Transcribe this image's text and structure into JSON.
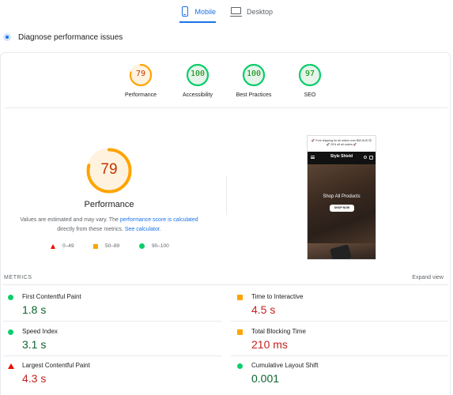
{
  "tabs": [
    {
      "label": "Mobile",
      "icon": "smartphone-icon",
      "active": true
    },
    {
      "label": "Desktop",
      "icon": "monitor-icon",
      "active": false
    }
  ],
  "diagnose": {
    "title": "Diagnose performance issues"
  },
  "category_scores": [
    {
      "label": "Performance",
      "score": "79",
      "status": "average",
      "color": "#ffa400",
      "text_color": "#c33300"
    },
    {
      "label": "Accessibility",
      "score": "100",
      "status": "pass",
      "color": "#0cce6b",
      "text_color": "#008800"
    },
    {
      "label": "Best Practices",
      "score": "100",
      "status": "pass",
      "color": "#0cce6b",
      "text_color": "#008800"
    },
    {
      "label": "SEO",
      "score": "97",
      "status": "pass",
      "color": "#0cce6b",
      "text_color": "#008800"
    }
  ],
  "performance": {
    "score": "79",
    "label": "Performance",
    "disclaimer_pre": "Values are estimated and may vary. The ",
    "disclaimer_link1": "performance score is calculated",
    "disclaimer_mid": " directly from these metrics. ",
    "disclaimer_link2": "See calculator."
  },
  "legend": [
    {
      "shape": "triangle",
      "range": "0–49",
      "color": "#eb0f00"
    },
    {
      "shape": "square",
      "range": "50–89",
      "color": "#ffa400"
    },
    {
      "shape": "circle",
      "range": "90–100",
      "color": "#0cce6b"
    }
  ],
  "screenshot": {
    "promo_text": "🚀 Free shipping for all orders over $50 AUD 😊 🚀 20% off all orders 🚀",
    "brand": "Style Shield",
    "hero_title": "Shop All Products",
    "hero_button": "SHOP NOW"
  },
  "metrics_section": {
    "heading": "METRICS",
    "expand": "Expand view"
  },
  "metrics": [
    {
      "name": "First Contentful Paint",
      "value": "1.8 s",
      "status": "good"
    },
    {
      "name": "Time to Interactive",
      "value": "4.5 s",
      "status": "average"
    },
    {
      "name": "Speed Index",
      "value": "3.1 s",
      "status": "good"
    },
    {
      "name": "Total Blocking Time",
      "value": "210 ms",
      "status": "average"
    },
    {
      "name": "Largest Contentful Paint",
      "value": "4.3 s",
      "status": "poor"
    },
    {
      "name": "Cumulative Layout Shift",
      "value": "0.001",
      "status": "good"
    }
  ]
}
